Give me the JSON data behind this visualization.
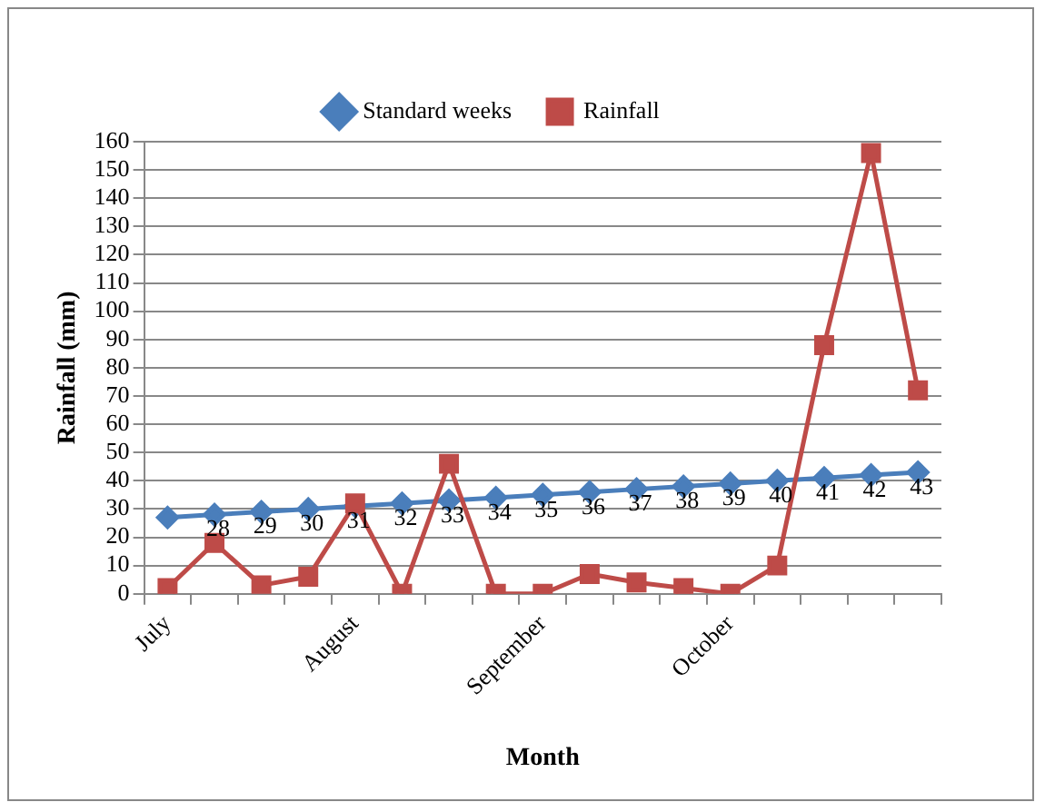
{
  "chart_data": {
    "type": "line",
    "xlabel": "Month",
    "ylabel": "Rainfall (mm)",
    "categories": [
      "July",
      null,
      null,
      null,
      "August",
      null,
      null,
      null,
      "September",
      null,
      null,
      null,
      "October",
      null,
      null,
      null,
      null
    ],
    "ylim": [
      0,
      160
    ],
    "yticks": [
      0,
      10,
      20,
      30,
      40,
      50,
      60,
      70,
      80,
      90,
      100,
      110,
      120,
      130,
      140,
      150,
      160
    ],
    "grid": "y",
    "legend": "top",
    "series": [
      {
        "name": "Standard weeks",
        "color": "#4a7ebb",
        "marker": "diamond",
        "values": [
          27,
          28,
          29,
          30,
          31,
          32,
          33,
          34,
          35,
          36,
          37,
          38,
          39,
          40,
          41,
          42,
          43
        ],
        "value_labels": [
          null,
          "28",
          "29",
          "30",
          "31",
          "32",
          "33",
          "34",
          "35",
          "36",
          "37",
          "38",
          "39",
          "40",
          "41",
          "42",
          "43"
        ]
      },
      {
        "name": "Rainfall",
        "color": "#be4b48",
        "marker": "square",
        "values": [
          2,
          18,
          3,
          6,
          32,
          0,
          46,
          0,
          0,
          7,
          4,
          2,
          0,
          10,
          88,
          156,
          72
        ]
      }
    ]
  }
}
